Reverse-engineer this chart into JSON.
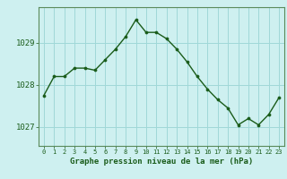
{
  "x": [
    0,
    1,
    2,
    3,
    4,
    5,
    6,
    7,
    8,
    9,
    10,
    11,
    12,
    13,
    14,
    15,
    16,
    17,
    18,
    19,
    20,
    21,
    22,
    23
  ],
  "y": [
    1027.75,
    1028.2,
    1028.2,
    1028.4,
    1028.4,
    1028.35,
    1028.6,
    1028.85,
    1029.15,
    1029.55,
    1029.25,
    1029.25,
    1029.1,
    1028.85,
    1028.55,
    1028.2,
    1027.9,
    1027.65,
    1027.45,
    1027.05,
    1027.2,
    1027.05,
    1027.3,
    1027.7
  ],
  "line_color": "#1a5c1a",
  "marker_color": "#1a5c1a",
  "bg_color": "#cef0f0",
  "grid_color": "#a0d8d8",
  "xlabel": "Graphe pression niveau de la mer (hPa)",
  "xlabel_color": "#1a5c1a",
  "tick_color": "#1a5c1a",
  "axis_color": "#5a8a5a",
  "yticks": [
    1027,
    1028,
    1029
  ],
  "ylim": [
    1026.55,
    1029.85
  ],
  "xlim": [
    -0.5,
    23.5
  ],
  "xtick_labels": [
    "0",
    "1",
    "2",
    "3",
    "4",
    "5",
    "6",
    "7",
    "8",
    "9",
    "10",
    "11",
    "12",
    "13",
    "14",
    "15",
    "16",
    "17",
    "18",
    "19",
    "20",
    "21",
    "22",
    "23"
  ]
}
